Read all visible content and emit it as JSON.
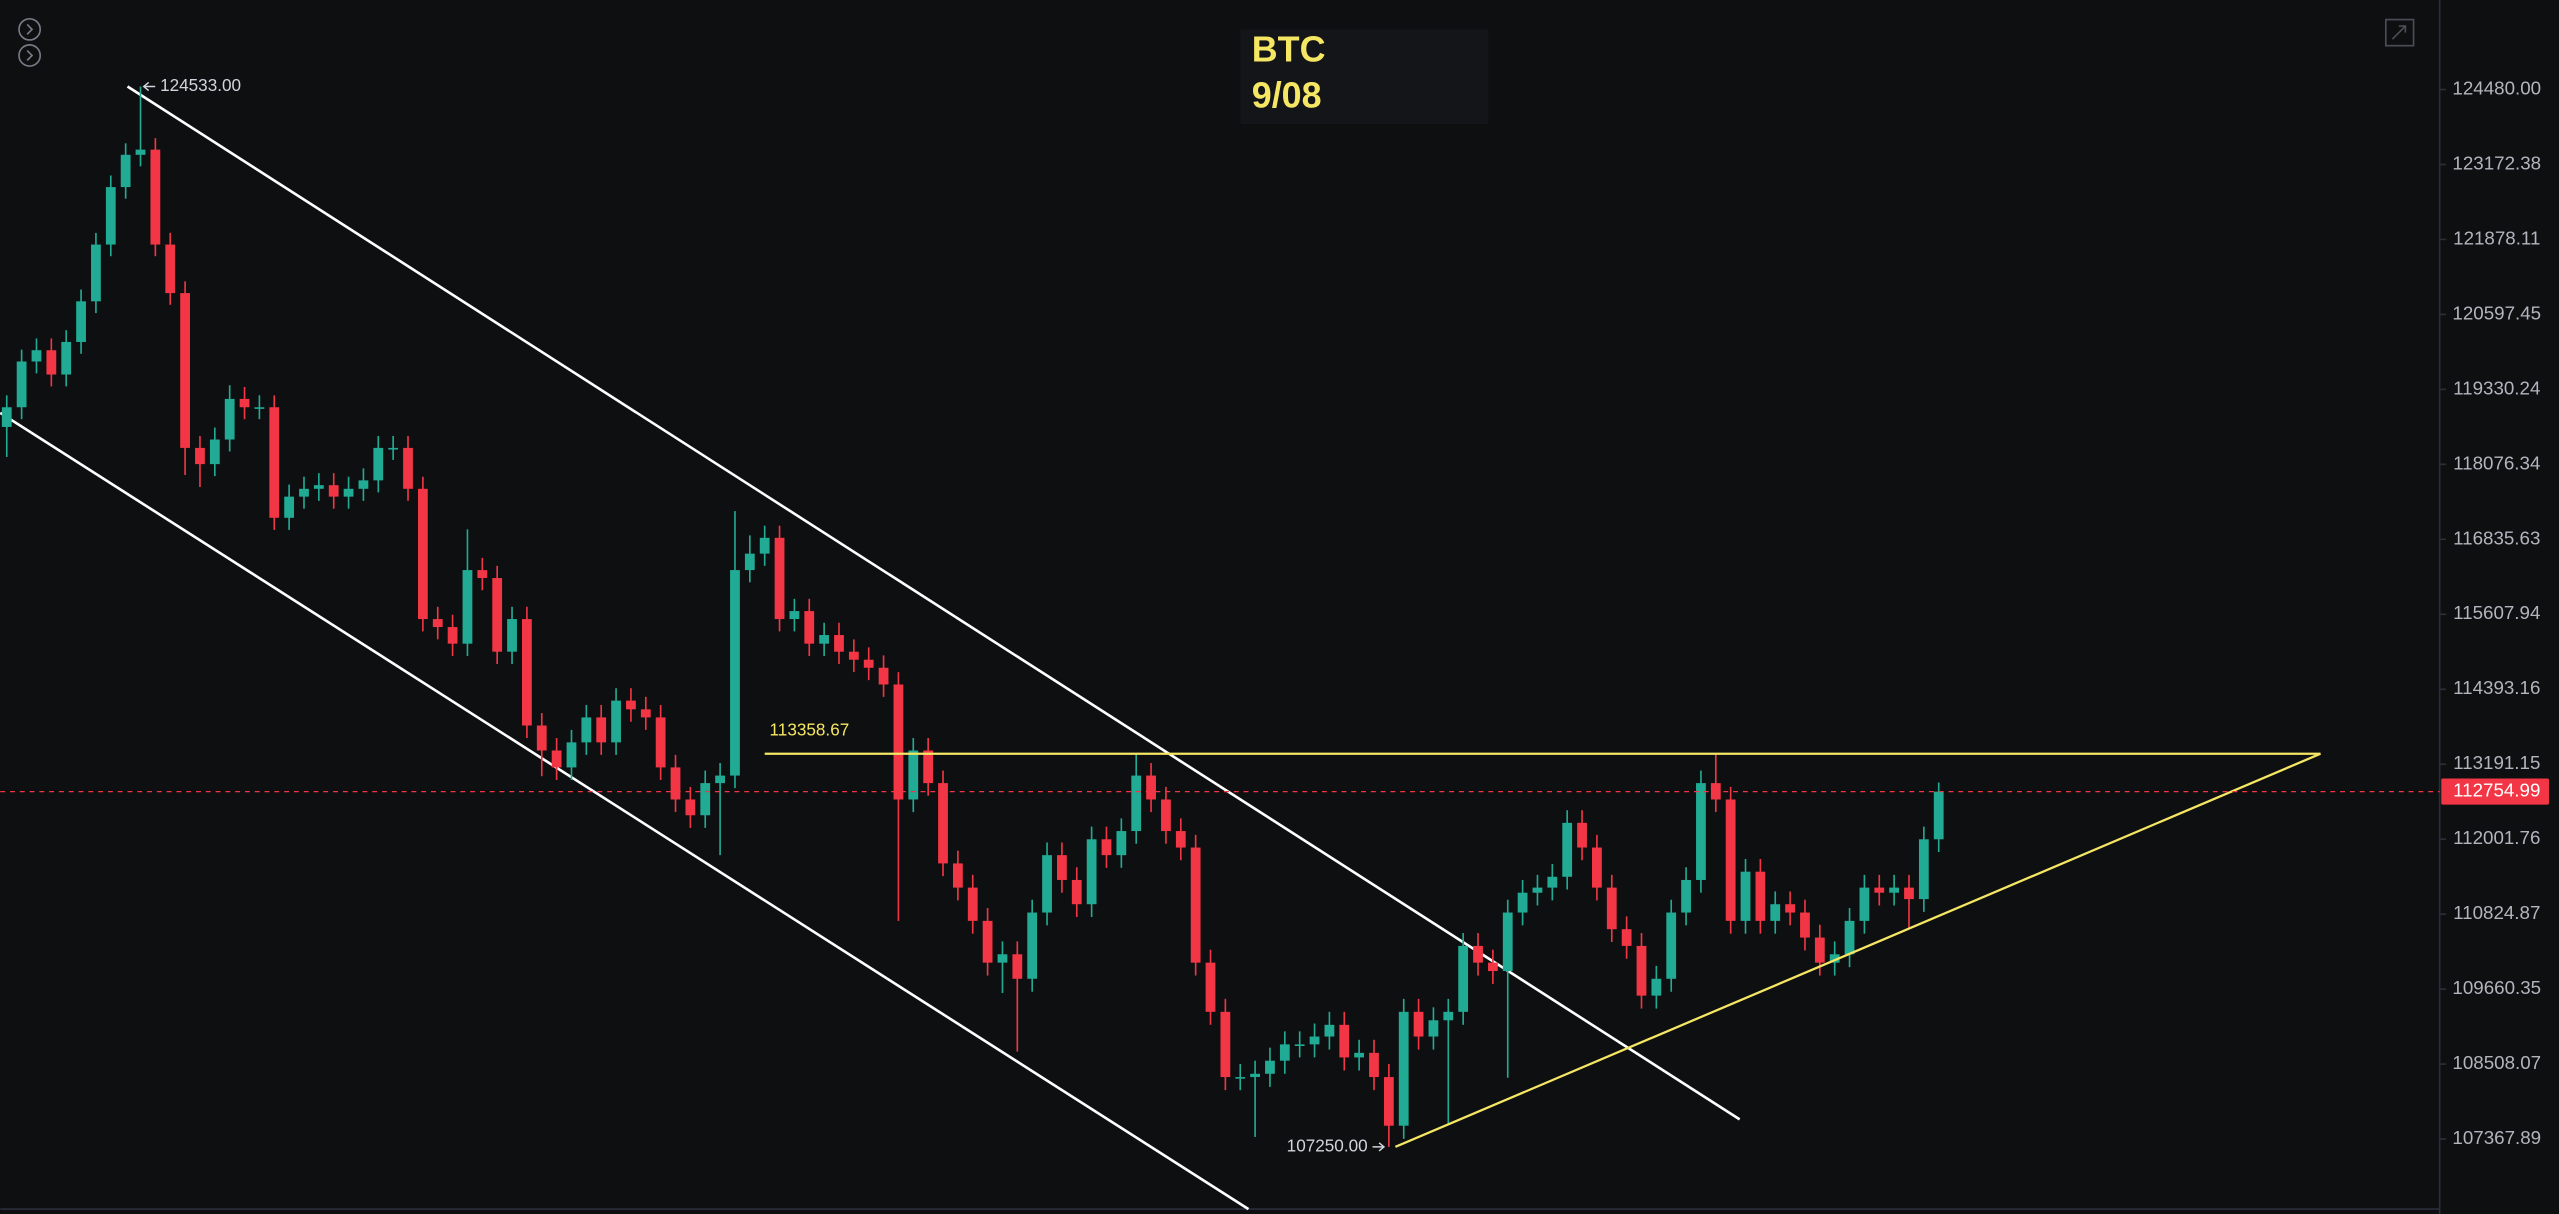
{
  "chart_data": {
    "type": "candlestick",
    "title": "BTC",
    "subtitle": "9/08",
    "log_scale": true,
    "ylim": [
      106240,
      126060
    ],
    "yticks": [
      {
        "value": 124480,
        "label": "124480.00"
      },
      123172.38,
      121878.11,
      120597.45,
      119330.24,
      118076.34,
      116835.63,
      115607.94,
      114393.16,
      113191.15,
      112001.76,
      110824.87,
      109660.35,
      108508.07,
      107367.89
    ],
    "up_color": "#22ab94",
    "down_color": "#f23645",
    "open": [
      118700,
      119030,
      119800,
      119990,
      119580,
      120130,
      120820,
      121790,
      122780,
      123340,
      123430,
      121790,
      120960,
      118350,
      118080,
      118490,
      119170,
      119030,
      119030,
      117190,
      117540,
      117670,
      117730,
      117540,
      117670,
      117810,
      118350,
      118350,
      117670,
      115530,
      115400,
      115130,
      116330,
      116200,
      115000,
      115530,
      113810,
      113410,
      113140,
      113540,
      113940,
      113540,
      114210,
      114070,
      113940,
      113140,
      112630,
      112380,
      112890,
      113010,
      116330,
      116600,
      116860,
      115530,
      115660,
      115130,
      115270,
      115000,
      114870,
      114740,
      114470,
      112630,
      113410,
      112890,
      111620,
      111240,
      110720,
      110070,
      110200,
      109820,
      110850,
      111750,
      111360,
      110980,
      112000,
      111750,
      112130,
      113010,
      112630,
      112130,
      111870,
      110070,
      109310,
      108310,
      108310,
      108360,
      108560,
      108810,
      108810,
      108930,
      109110,
      108610,
      108680,
      108310,
      107570,
      109310,
      108930,
      109180,
      109310,
      110330,
      110070,
      109940,
      110850,
      111160,
      111240,
      111410,
      112260,
      111870,
      111240,
      110590,
      110330,
      109560,
      109820,
      110850,
      111360,
      112890,
      112630,
      110720,
      111490,
      110720,
      110980,
      110850,
      110460,
      110070,
      110200,
      110720,
      111240,
      111160,
      111240,
      111060,
      112000
    ],
    "high": [
      119230,
      120000,
      120190,
      120190,
      120330,
      121020,
      121990,
      122980,
      123540,
      124533,
      123630,
      121990,
      121160,
      118550,
      118690,
      119400,
      119370,
      119230,
      119230,
      117740,
      117870,
      117930,
      117930,
      117870,
      118010,
      118550,
      118550,
      118550,
      117870,
      115730,
      115600,
      117000,
      116530,
      116400,
      115730,
      115730,
      114010,
      113610,
      113740,
      114140,
      114140,
      114410,
      114410,
      114270,
      114140,
      113340,
      112830,
      113090,
      113210,
      117300,
      116900,
      117060,
      117060,
      115860,
      115860,
      115470,
      115470,
      115200,
      115070,
      114940,
      114670,
      113610,
      113610,
      113090,
      111820,
      111440,
      110920,
      110400,
      110400,
      111050,
      111950,
      111950,
      111560,
      112200,
      112200,
      112330,
      113350,
      113210,
      112830,
      112330,
      112070,
      110270,
      109510,
      108510,
      108560,
      108760,
      109010,
      109010,
      109130,
      109310,
      109310,
      108880,
      108880,
      108510,
      109510,
      109510,
      109380,
      109510,
      110530,
      110530,
      110270,
      111050,
      111360,
      111440,
      111610,
      112460,
      112460,
      112070,
      111440,
      110790,
      110530,
      110020,
      111050,
      111560,
      113090,
      113360,
      112830,
      111690,
      111690,
      111180,
      111180,
      111050,
      110660,
      110400,
      110920,
      111440,
      111440,
      111440,
      111440,
      112200,
      112900
    ],
    "low": [
      118200,
      118830,
      119600,
      119380,
      119380,
      119930,
      120620,
      121590,
      122580,
      123140,
      121590,
      120760,
      117900,
      117700,
      117880,
      118290,
      118830,
      118830,
      116990,
      116990,
      117340,
      117470,
      117340,
      117340,
      117470,
      117610,
      118150,
      117470,
      115330,
      115200,
      114930,
      114930,
      116000,
      114800,
      114800,
      113610,
      113000,
      112940,
      112940,
      113340,
      113340,
      113340,
      113870,
      113740,
      112940,
      112430,
      112180,
      112180,
      111750,
      112810,
      116130,
      116400,
      115330,
      115330,
      114930,
      114930,
      114800,
      114670,
      114540,
      114270,
      110720,
      112430,
      112690,
      111420,
      111040,
      110520,
      109870,
      109600,
      108700,
      109620,
      110650,
      111160,
      110780,
      110780,
      111550,
      111550,
      111930,
      112430,
      111930,
      111670,
      109870,
      109110,
      108110,
      108110,
      107400,
      108160,
      108360,
      108610,
      108610,
      108730,
      108410,
      108410,
      108110,
      107250,
      107370,
      108730,
      108730,
      107600,
      109110,
      109870,
      109740,
      108300,
      110650,
      110960,
      111040,
      111210,
      111670,
      111040,
      110390,
      110130,
      109360,
      109360,
      109620,
      110650,
      111160,
      112430,
      110520,
      110520,
      110520,
      110520,
      110650,
      110260,
      109870,
      109870,
      110000,
      110520,
      110960,
      110960,
      110600,
      110860,
      111800
    ],
    "close": [
      119030,
      119800,
      119990,
      119580,
      120130,
      120820,
      121790,
      122780,
      123340,
      123430,
      121790,
      120960,
      118350,
      118080,
      118490,
      119170,
      119030,
      119030,
      117190,
      117540,
      117670,
      117730,
      117540,
      117670,
      117810,
      118350,
      118350,
      117670,
      115530,
      115400,
      115130,
      116330,
      116200,
      115000,
      115530,
      113810,
      113410,
      113140,
      113540,
      113940,
      113540,
      114210,
      114070,
      113940,
      113140,
      112630,
      112380,
      112890,
      113010,
      116330,
      116600,
      116860,
      115530,
      115660,
      115130,
      115270,
      115000,
      114870,
      114740,
      114470,
      112630,
      113410,
      112890,
      111620,
      111240,
      110720,
      110070,
      110200,
      109820,
      110850,
      111750,
      111360,
      110980,
      112000,
      111750,
      112130,
      113010,
      112630,
      112130,
      111870,
      110070,
      109310,
      108310,
      108310,
      108360,
      108560,
      108810,
      108810,
      108930,
      109110,
      108610,
      108680,
      108310,
      107570,
      109310,
      108930,
      109180,
      109310,
      110330,
      110070,
      109940,
      110850,
      111160,
      111240,
      111410,
      112260,
      111870,
      111240,
      110590,
      110330,
      109560,
      109820,
      110850,
      111360,
      112890,
      112630,
      110720,
      111490,
      110720,
      110980,
      110850,
      110460,
      110070,
      110200,
      110720,
      111240,
      111160,
      111240,
      111060,
      112000,
      112754.99
    ],
    "last_price": 112754.99,
    "level": 113358.67,
    "high_marker": {
      "value": 124533,
      "label": "124533.00"
    },
    "low_marker": {
      "value": 107250,
      "label": "107250.00"
    }
  }
}
